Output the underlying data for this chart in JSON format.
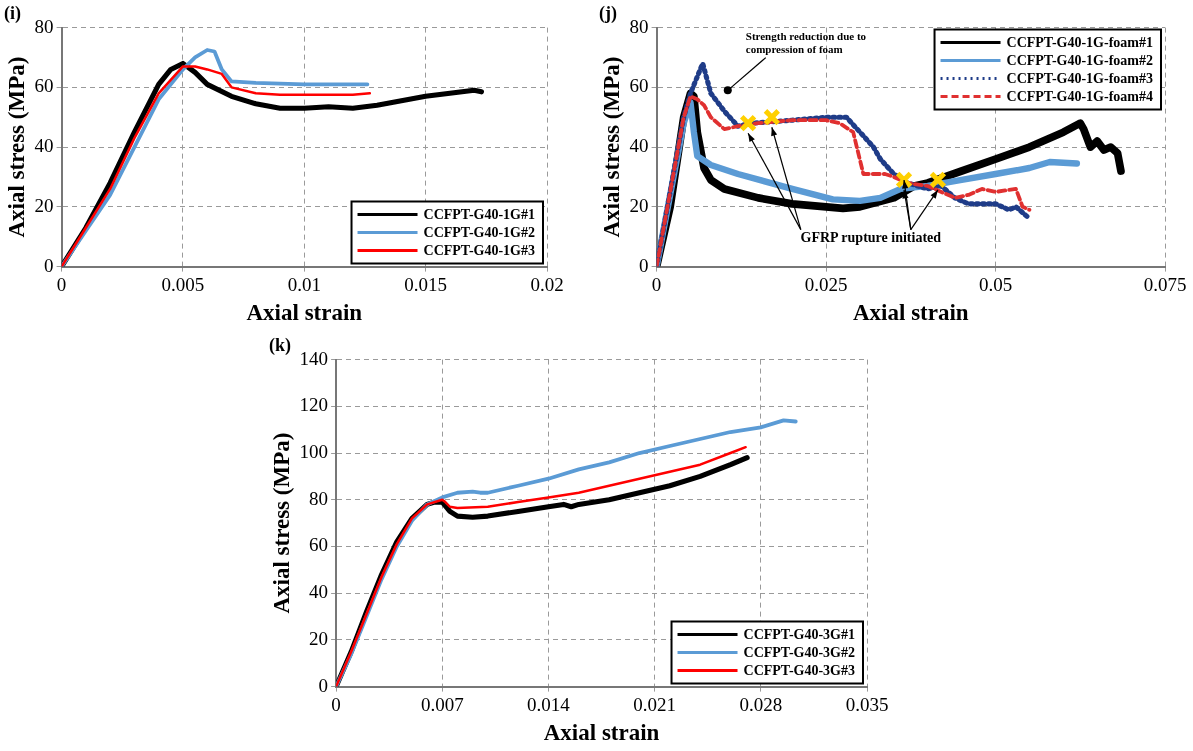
{
  "chart_data": [
    {
      "type": "line",
      "title": "(i)",
      "xlabel": "Axial strain",
      "ylabel": "Axial stress (MPa)",
      "xlim": [
        0,
        0.02
      ],
      "xticks": [
        0,
        0.005,
        0.01,
        0.015,
        0.02
      ],
      "ylim": [
        0,
        80
      ],
      "yticks": [
        0,
        20,
        40,
        60,
        80
      ],
      "grid": true,
      "legend": "bottom right",
      "marker": "none",
      "series": [
        {
          "name": "CCFPT-G40-1G#1",
          "color": "#000000",
          "x": [
            0,
            0.001,
            0.002,
            0.003,
            0.004,
            0.0045,
            0.005,
            0.0055,
            0.006,
            0.007,
            0.008,
            0.009,
            0.01,
            0.011,
            0.012,
            0.013,
            0.014,
            0.015,
            0.016,
            0.017,
            0.0173
          ],
          "values": [
            0,
            13,
            28,
            45,
            61,
            66,
            68,
            65,
            61,
            57,
            54.5,
            53,
            53,
            53.5,
            53,
            54,
            55.5,
            57,
            58,
            59,
            58.5
          ]
        },
        {
          "name": "CCFPT-G40-1G#2",
          "color": "#5b9bd5",
          "x": [
            0,
            0.001,
            0.002,
            0.003,
            0.004,
            0.005,
            0.0055,
            0.006,
            0.0063,
            0.0066,
            0.007,
            0.008,
            0.01,
            0.012,
            0.0126
          ],
          "values": [
            0,
            12,
            24,
            40,
            56,
            66,
            70,
            72.5,
            72,
            66,
            62,
            61.5,
            61,
            61,
            61
          ]
        },
        {
          "name": "CCFPT-G40-1G#3",
          "color": "#ff0000",
          "x": [
            0,
            0.001,
            0.002,
            0.003,
            0.004,
            0.005,
            0.0055,
            0.006,
            0.0066,
            0.007,
            0.008,
            0.009,
            0.01,
            0.012,
            0.0127
          ],
          "values": [
            0,
            13,
            26,
            43,
            58,
            67,
            67,
            66,
            64.5,
            60,
            58,
            57.5,
            57.5,
            57.5,
            58
          ]
        }
      ]
    },
    {
      "type": "line",
      "title": "(j)",
      "xlabel": "Axial strain",
      "ylabel": "Axial stress (MPa)",
      "xlim": [
        0,
        0.075
      ],
      "xticks": [
        0,
        0.025,
        0.05,
        0.075
      ],
      "ylim": [
        0,
        80
      ],
      "yticks": [
        0,
        20,
        40,
        60,
        80
      ],
      "grid": true,
      "legend": "top right",
      "marker": "none",
      "annotations": [
        {
          "text": "Strength reduction due to compression of foam",
          "x": 0.0105,
          "y": 59
        },
        {
          "text": "GFRP rupture initiated",
          "x": 0.0365,
          "y": 29
        }
      ],
      "series": [
        {
          "name": "CCFPT-G40-1G-foam#1",
          "color": "#000000",
          "line_style": "solid",
          "x": [
            0,
            0.002,
            0.004,
            0.005,
            0.0055,
            0.006,
            0.007,
            0.008,
            0.01,
            0.015,
            0.02,
            0.025,
            0.0275,
            0.03,
            0.035,
            0.038,
            0.04,
            0.045,
            0.05,
            0.055,
            0.06,
            0.0625,
            0.063,
            0.064,
            0.065,
            0.066,
            0.067,
            0.068,
            0.0685
          ],
          "values": [
            0,
            20,
            50,
            58,
            57,
            45,
            33,
            29,
            26,
            23,
            21,
            20,
            19.5,
            20,
            23,
            27,
            28,
            32,
            36,
            40,
            45,
            48,
            46,
            40,
            42,
            39,
            40,
            38,
            32
          ]
        },
        {
          "name": "CCFPT-G40-1G-foam#2",
          "color": "#5b9bd5",
          "line_style": "solid",
          "x": [
            0,
            0.004,
            0.005,
            0.0055,
            0.006,
            0.008,
            0.012,
            0.02,
            0.026,
            0.03,
            0.033,
            0.036,
            0.04,
            0.045,
            0.05,
            0.055,
            0.058,
            0.062
          ],
          "values": [
            0,
            48,
            55,
            45,
            37,
            34,
            31,
            26,
            22.5,
            22,
            23,
            26,
            27,
            29,
            31,
            33,
            35,
            34.5
          ]
        },
        {
          "name": "CCFPT-G40-1G-foam#3",
          "color": "#1f3c88",
          "line_style": "dotted",
          "x": [
            0,
            0.004,
            0.005,
            0.0068,
            0.008,
            0.01,
            0.012,
            0.014,
            0.02,
            0.025,
            0.028,
            0.03,
            0.032,
            0.033,
            0.035,
            0.037,
            0.04,
            0.042,
            0.044,
            0.046,
            0.05,
            0.052,
            0.053,
            0.0548
          ],
          "values": [
            0,
            50,
            58,
            68,
            58,
            52,
            47,
            48,
            49,
            50,
            50,
            45,
            40,
            36,
            31,
            28,
            26,
            27,
            23,
            21,
            21,
            19,
            20,
            16.5
          ]
        },
        {
          "name": "CCFPT-G40-1G-foam#4",
          "color": "#e03030",
          "line_style": "dashed",
          "x": [
            0,
            0.004,
            0.005,
            0.006,
            0.007,
            0.008,
            0.01,
            0.012,
            0.015,
            0.02,
            0.025,
            0.027,
            0.029,
            0.0305,
            0.0337,
            0.035,
            0.037,
            0.04,
            0.042,
            0.044,
            0.046,
            0.048,
            0.05,
            0.053,
            0.054,
            0.055
          ],
          "values": [
            0,
            50,
            57,
            56,
            54,
            50,
            46,
            47,
            48,
            49,
            49,
            48,
            45,
            31,
            31,
            30,
            28,
            27,
            25,
            23,
            24,
            26,
            25,
            26,
            20,
            19
          ]
        },
        {
          "type": "scatter",
          "marker": "cross",
          "color": "#ffd000",
          "x": [
            0.0135,
            0.017,
            0.0365,
            0.0415
          ],
          "values": [
            48,
            50,
            29,
            29
          ]
        }
      ]
    },
    {
      "type": "line",
      "title": "(k)",
      "xlabel": "Axial strain",
      "ylabel": "Axial stress (MPa)",
      "xlim": [
        0,
        0.035
      ],
      "xticks": [
        0,
        0.007,
        0.014,
        0.021,
        0.028,
        0.035
      ],
      "ylim": [
        0,
        140
      ],
      "yticks": [
        0,
        20,
        40,
        60,
        80,
        100,
        120,
        140
      ],
      "grid": true,
      "legend": "bottom right",
      "marker": "none",
      "series": [
        {
          "name": "CCFPT-G40-3G#1",
          "color": "#000000",
          "x": [
            0,
            0.001,
            0.002,
            0.003,
            0.004,
            0.005,
            0.006,
            0.0065,
            0.007,
            0.0075,
            0.008,
            0.009,
            0.01,
            0.012,
            0.014,
            0.015,
            0.0155,
            0.016,
            0.018,
            0.02,
            0.022,
            0.024,
            0.026,
            0.0271
          ],
          "values": [
            0,
            15,
            32,
            48,
            62,
            72,
            78,
            79,
            79,
            75,
            73,
            72.5,
            73,
            75,
            77,
            78,
            77,
            78,
            80,
            83,
            86,
            90,
            95,
            98
          ]
        },
        {
          "name": "CCFPT-G40-3G#2",
          "color": "#5b9bd5",
          "x": [
            0,
            0.001,
            0.002,
            0.003,
            0.004,
            0.005,
            0.006,
            0.007,
            0.008,
            0.009,
            0.0095,
            0.01,
            0.012,
            0.014,
            0.016,
            0.018,
            0.02,
            0.022,
            0.024,
            0.026,
            0.028,
            0.0295,
            0.0303
          ],
          "values": [
            0,
            14,
            30,
            46,
            60,
            71,
            78,
            81,
            83,
            83.5,
            83,
            83,
            86,
            89,
            93,
            96,
            100,
            103,
            106,
            109,
            111,
            114,
            113.5
          ]
        },
        {
          "name": "CCFPT-G40-3G#3",
          "color": "#ff0000",
          "x": [
            0,
            0.001,
            0.002,
            0.003,
            0.004,
            0.005,
            0.006,
            0.007,
            0.0072,
            0.0075,
            0.008,
            0.01,
            0.012,
            0.014,
            0.016,
            0.018,
            0.02,
            0.022,
            0.024,
            0.026,
            0.027
          ],
          "values": [
            0,
            15,
            31,
            47,
            61,
            72,
            78,
            80,
            79,
            77,
            76.5,
            77,
            79,
            81,
            83,
            86,
            89,
            92,
            95,
            100,
            102.5
          ]
        }
      ]
    }
  ]
}
